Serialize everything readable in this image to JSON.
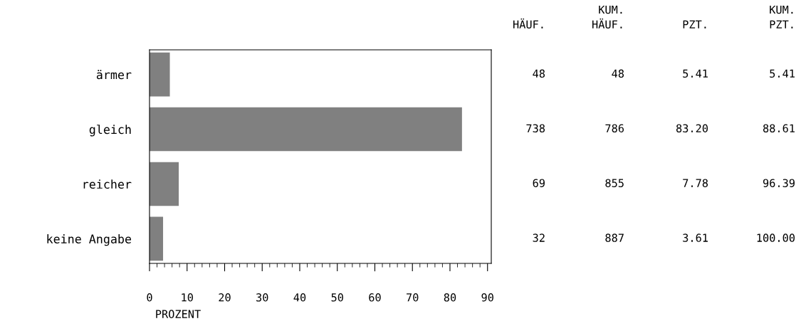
{
  "chart_data": {
    "type": "bar",
    "orientation": "horizontal",
    "categories": [
      "ärmer",
      "gleich",
      "reicher",
      "keine Angabe"
    ],
    "values": [
      5.41,
      83.2,
      7.78,
      3.61
    ],
    "color": "#808080",
    "xlabel": "PROZENT",
    "xlim": [
      0,
      91
    ],
    "xticks": [
      0,
      10,
      20,
      30,
      40,
      50,
      60,
      70,
      80,
      90
    ],
    "grid": false,
    "value_labels": [
      "5.41",
      "83.20",
      "7.78",
      "3.61"
    ],
    "annotations": [
      "HÄUF.",
      "KUM.\nHÄUF.",
      "PZT.",
      "KUM.\nPZT.",
      "48",
      "48",
      "5.41",
      "738",
      "786",
      "88.61",
      "69",
      "855",
      "96.39",
      "32",
      "887",
      "100.00"
    ]
  }
}
